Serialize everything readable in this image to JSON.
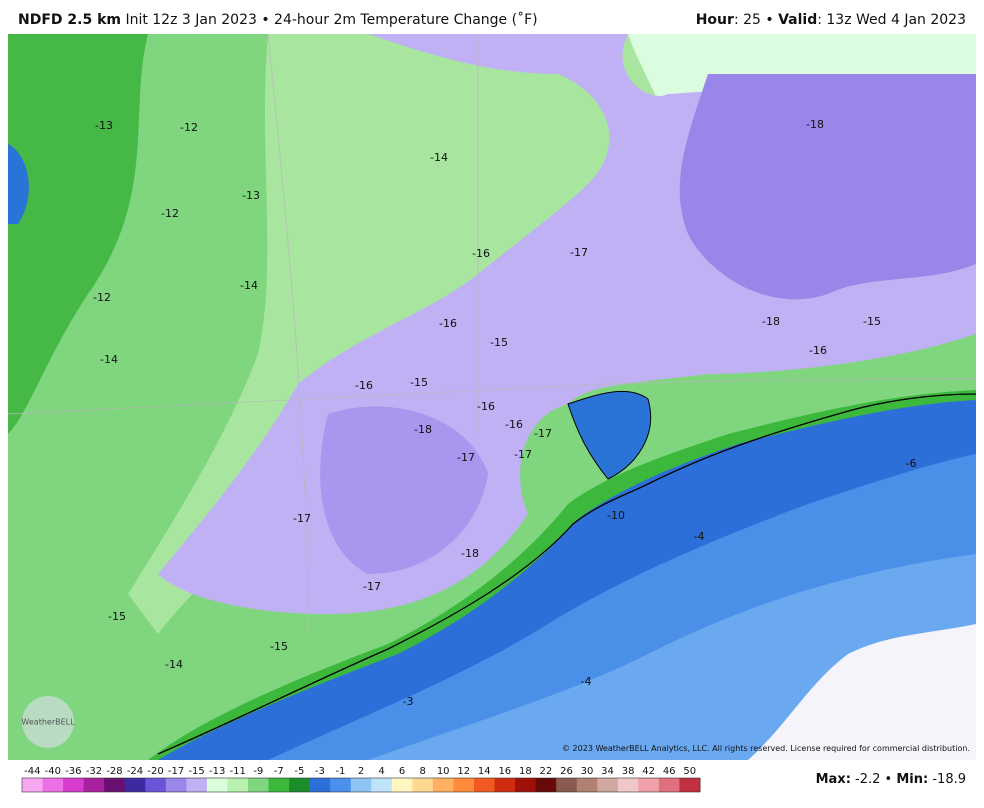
{
  "header": {
    "model": "NDFD 2.5 km",
    "description": "Init 12z 3 Jan 2023 • 24-hour 2m Temperature Change (˚F)",
    "hour_label": "Hour",
    "hour": ": 25 • ",
    "valid_label": "Valid",
    "valid": ": 13z Wed 4 Jan 2023"
  },
  "map_labels": [
    -13,
    -12,
    -14,
    -18,
    -13,
    -12,
    -16,
    -17,
    -14,
    -12,
    -16,
    -18,
    -15,
    -15,
    -16,
    -14,
    -16,
    -15,
    -16,
    -18,
    -16,
    -17,
    -17,
    -17,
    -6,
    -17,
    -10,
    -4,
    -18,
    -17,
    -15,
    -15,
    -14,
    -4,
    -3
  ],
  "logo": "WeatherBELL",
  "copyright": "© 2023 WeatherBELL Analytics, LLC. All rights reserved. License required for commercial distribution.",
  "colorbar": {
    "ticks": [
      -44,
      -40,
      -36,
      -32,
      -28,
      -24,
      -20,
      -17,
      -15,
      -13,
      -11,
      -9,
      -7,
      -5,
      -3,
      -1,
      2,
      4,
      6,
      8,
      10,
      12,
      14,
      16,
      18,
      22,
      26,
      30,
      34,
      38,
      42,
      46,
      50
    ],
    "colors": [
      "#f7a8f0",
      "#ee70e6",
      "#d83ccf",
      "#a8209e",
      "#6a1070",
      "#3c2aa0",
      "#6a55d8",
      "#9a86e8",
      "#c0b0f4",
      "#daffda",
      "#b8f0b0",
      "#7fd67f",
      "#3cb83c",
      "#1a8c2a",
      "#2d6fd8",
      "#4a90ec",
      "#8ec4f4",
      "#bfe4fa",
      "#fff6c0",
      "#ffd890",
      "#ffb060",
      "#ff8a3a",
      "#f05a20",
      "#d02a10",
      "#a01008",
      "#6a0a08",
      "#8a5a50",
      "#b08070",
      "#d0a8a0",
      "#f0c8c8",
      "#f0a0a8",
      "#e07080",
      "#c03040"
    ]
  },
  "footer": {
    "max_label": "Max:",
    "max": -2.2,
    "separator": "•",
    "min_label": "Min:",
    "min": -18.9
  }
}
